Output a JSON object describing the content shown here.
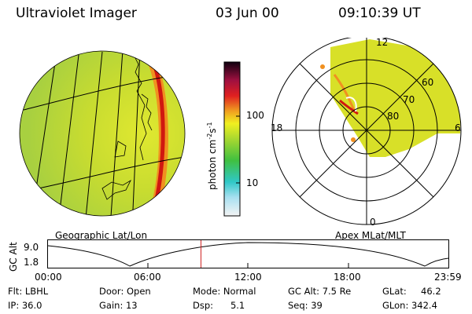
{
  "header": {
    "title": "Ultraviolet Imager",
    "date": "03 Jun 00",
    "time": "09:10:39 UT"
  },
  "left_panel": {
    "label": "Geographic Lat/Lon"
  },
  "right_panel": {
    "label": "Apex MLat/MLT",
    "mlt_labels": {
      "top": "12",
      "right": "6",
      "bottom": "0",
      "left": "18"
    },
    "lat_labels": [
      "60",
      "70",
      "80"
    ]
  },
  "colorbar": {
    "unit_label": "photon cm",
    "unit_sup1": "-2",
    "unit_mid": "s",
    "unit_sup2": "-1",
    "tick_100": "100",
    "tick_10": "10",
    "scale": "log"
  },
  "timeline": {
    "ylabel": "GC Alt",
    "y_top": "9.0",
    "y_bottom": "1.8",
    "x_ticks": [
      "00:00",
      "06:00",
      "12:00",
      "18:00",
      "23:59"
    ],
    "current_time_fraction": 0.382
  },
  "info": {
    "flt": "Flt: LBHL",
    "ip": "IP: 36.0",
    "door": "Door: Open",
    "gain": "Gain: 13",
    "mode": "Mode: Normal",
    "dsp": "Dsp:      5.1",
    "gcalt": "GC Alt: 7.5 Re",
    "seq": "Seq: 39",
    "glat": "GLat:     46.2",
    "glon": "GLon: 342.4"
  },
  "colors": {
    "aurora_red": "#d01810",
    "field_yellow": "#d8e020",
    "cursor": "#d02020"
  }
}
